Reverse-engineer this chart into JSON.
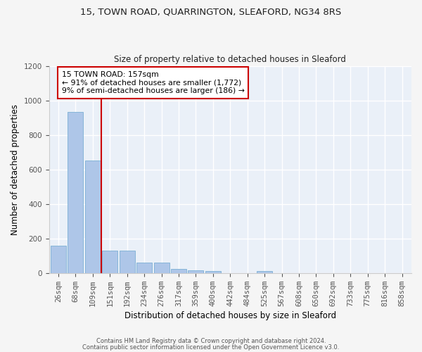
{
  "title1": "15, TOWN ROAD, QUARRINGTON, SLEAFORD, NG34 8RS",
  "title2": "Size of property relative to detached houses in Sleaford",
  "xlabel": "Distribution of detached houses by size in Sleaford",
  "ylabel": "Number of detached properties",
  "bar_color": "#aec6e8",
  "bar_edge_color": "#7bafd4",
  "categories": [
    "26sqm",
    "68sqm",
    "109sqm",
    "151sqm",
    "192sqm",
    "234sqm",
    "276sqm",
    "317sqm",
    "359sqm",
    "400sqm",
    "442sqm",
    "484sqm",
    "525sqm",
    "567sqm",
    "608sqm",
    "650sqm",
    "692sqm",
    "733sqm",
    "775sqm",
    "816sqm",
    "858sqm"
  ],
  "values": [
    160,
    935,
    650,
    130,
    130,
    60,
    60,
    25,
    15,
    10,
    0,
    0,
    10,
    0,
    0,
    0,
    0,
    0,
    0,
    0,
    0
  ],
  "ylim": [
    0,
    1200
  ],
  "yticks": [
    0,
    200,
    400,
    600,
    800,
    1000,
    1200
  ],
  "annotation_text": "15 TOWN ROAD: 157sqm\n← 91% of detached houses are smaller (1,772)\n9% of semi-detached houses are larger (186) →",
  "annotation_box_color": "#ffffff",
  "annotation_box_edge_color": "#cc0000",
  "red_line_color": "#cc0000",
  "background_color": "#eaf0f8",
  "grid_color": "#ffffff",
  "fig_bg_color": "#f5f5f5",
  "footer1": "Contains HM Land Registry data © Crown copyright and database right 2024.",
  "footer2": "Contains public sector information licensed under the Open Government Licence v3.0."
}
